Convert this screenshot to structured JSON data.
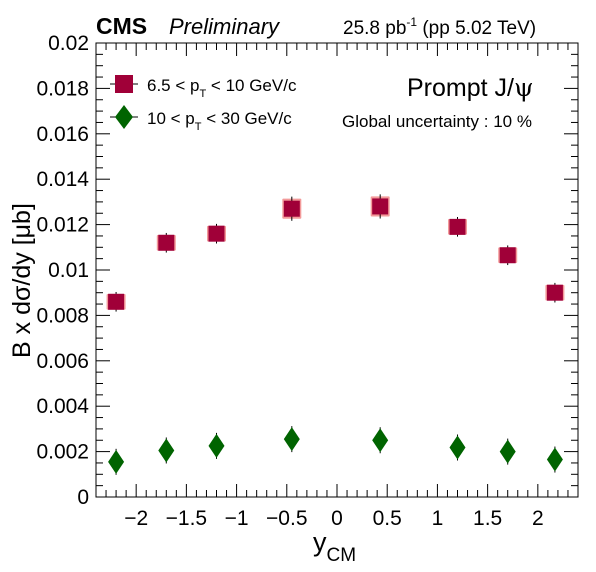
{
  "header": {
    "experiment": "CMS",
    "status": "Preliminary",
    "lumi_value": "25.8 pb",
    "lumi_exp": "-1",
    "lumi_rest": " (pp 5.02 TeV)"
  },
  "annotations": {
    "process_main": "Prompt J/",
    "process_psi": "ψ",
    "global_uncertainty": "Global uncertainty : 10 %"
  },
  "colors": {
    "series1_marker": "#a00038",
    "series1_box": "#f39a9a",
    "series2_marker": "#006400",
    "series2_box": "#8fcf8f"
  },
  "chart_data": {
    "type": "scatter",
    "title": "",
    "xlabel_main": "y",
    "xlabel_sub": "CM",
    "ylabel": "B x dσ/dy [μb]",
    "xlim": [
      -2.4,
      2.4
    ],
    "ylim": [
      0,
      0.02
    ],
    "x_major_ticks": [
      -2,
      -1.5,
      -1,
      -0.5,
      0,
      0.5,
      1,
      1.5,
      2
    ],
    "x_tick_labels": [
      "−2",
      "−1.5",
      "−1",
      "−0.5",
      "0",
      "0.5",
      "1",
      "1.5",
      "2"
    ],
    "y_major_ticks": [
      0,
      0.002,
      0.004,
      0.006,
      0.008,
      0.01,
      0.012,
      0.014,
      0.016,
      0.018,
      0.02
    ],
    "y_tick_labels": [
      "0",
      "0.002",
      "0.004",
      "0.006",
      "0.008",
      "0.01",
      "0.012",
      "0.014",
      "0.016",
      "0.018",
      "0.02"
    ],
    "legend_position": "top-left",
    "series": [
      {
        "name_pre": "6.5 < p",
        "name_sub": "T",
        "name_post": " < 10 GeV/c",
        "marker": "square",
        "x": [
          -2.2,
          -1.7,
          -1.2,
          -0.45,
          0.43,
          1.2,
          1.7,
          2.17
        ],
        "y": [
          0.0086,
          0.0112,
          0.0116,
          0.0127,
          0.0128,
          0.0119,
          0.01065,
          0.009
        ],
        "syst": [
          0.0003,
          0.0003,
          0.0003,
          0.0004,
          0.0004,
          0.0003,
          0.0003,
          0.0003
        ]
      },
      {
        "name_pre": "10 < p",
        "name_sub": "T",
        "name_post": " < 30 GeV/c",
        "marker": "diamond",
        "x": [
          -2.2,
          -1.7,
          -1.2,
          -0.45,
          0.43,
          1.2,
          1.7,
          2.17
        ],
        "y": [
          0.00155,
          0.00205,
          0.00225,
          0.00255,
          0.0025,
          0.00218,
          0.002,
          0.00165
        ],
        "syst": [
          0.0001,
          0.0001,
          0.0001,
          0.0001,
          0.0001,
          0.0001,
          0.0001,
          0.0001
        ]
      }
    ]
  }
}
